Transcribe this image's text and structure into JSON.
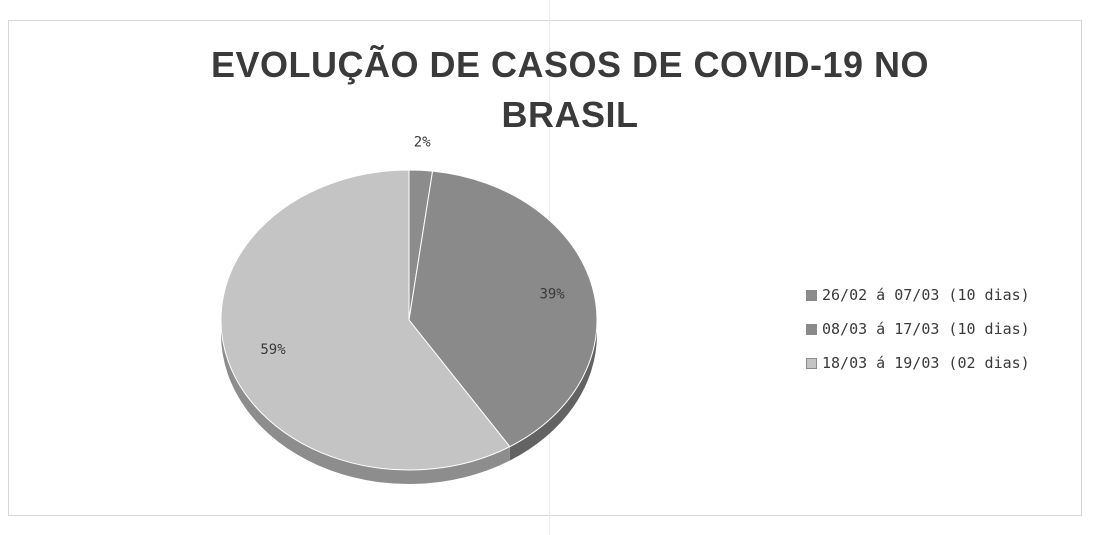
{
  "chart_data": {
    "type": "pie",
    "title_lines": [
      "EVOLUÇÃO DE CASOS DE COVID-19 NO",
      "BRASIL"
    ],
    "categories": [
      "26/02 á 07/03 (10 dias)",
      "08/03 á 17/03 (10 dias)",
      "18/03 á 19/03 (02 dias)"
    ],
    "values": [
      2,
      39,
      59
    ],
    "value_labels": [
      "2%",
      "39%",
      "59%"
    ],
    "colors": [
      "#8c8c8c",
      "#8a8a8a",
      "#c4c4c4"
    ],
    "legend_position": "right",
    "three_d": true
  }
}
